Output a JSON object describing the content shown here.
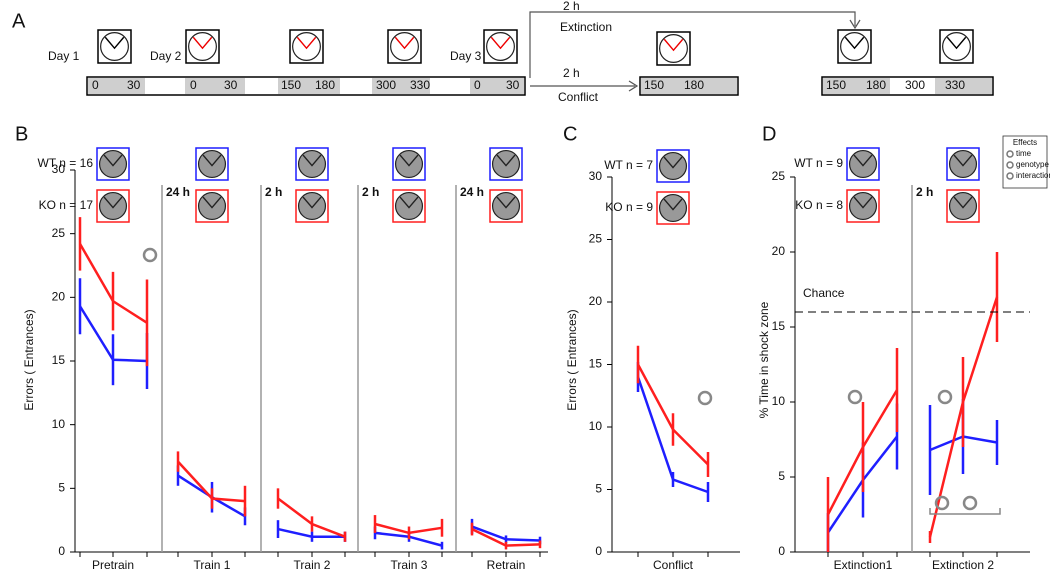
{
  "panel_a": {
    "label": "A",
    "days": [
      "Day 1",
      "Day 2",
      "Day 3"
    ],
    "timeline_1": [
      0,
      30,
      0,
      30,
      150,
      180,
      300,
      330,
      0,
      30
    ],
    "timeline_2": [
      150,
      180
    ],
    "timeline_3": [
      150,
      180,
      300,
      330
    ],
    "extinction": {
      "time": "2 h",
      "label": "Extinction"
    },
    "conflict": {
      "time": "2 h",
      "label": "Conflict"
    }
  },
  "chart_data": [
    {
      "type": "line",
      "panel": "B",
      "ylabel": "Errors ( Entrances)",
      "ylim": [
        0,
        30
      ],
      "yticks": [
        0,
        5,
        10,
        15,
        20,
        25,
        30
      ],
      "groups": [
        "Pretrain",
        "Train 1",
        "Train 2",
        "Train 3",
        "Retrain"
      ],
      "separators": [
        "24 h",
        "2 h",
        "2 h",
        "24 h"
      ],
      "series": [
        {
          "name": "WT n = 16",
          "color": "#1f1fff",
          "values": [
            [
              19.3,
              15.1,
              15.0
            ],
            [
              6.0,
              4.3,
              2.8
            ],
            [
              1.8,
              1.2,
              1.2
            ],
            [
              1.5,
              1.2,
              0.5
            ],
            [
              2.0,
              1.0,
              0.9
            ]
          ],
          "errors": [
            [
              2.2,
              2.0,
              2.2
            ],
            [
              0.8,
              1.2,
              0.7
            ],
            [
              0.7,
              0.4,
              0.4
            ],
            [
              0.5,
              0.4,
              0.3
            ],
            [
              0.6,
              0.3,
              0.3
            ]
          ]
        },
        {
          "name": "KO n = 17",
          "color": "#ff1f1f",
          "values": [
            [
              24.2,
              19.7,
              18.0
            ],
            [
              7.1,
              4.2,
              4.0
            ],
            [
              4.2,
              2.2,
              1.2
            ],
            [
              2.2,
              1.5,
              1.9
            ],
            [
              1.8,
              0.5,
              0.6
            ]
          ],
          "errors": [
            [
              2.1,
              2.3,
              3.4
            ],
            [
              0.8,
              0.8,
              1.2
            ],
            [
              0.8,
              0.6,
              0.4
            ],
            [
              0.7,
              0.5,
              0.7
            ],
            [
              0.5,
              0.3,
              0.3
            ]
          ]
        }
      ]
    },
    {
      "type": "line",
      "panel": "C",
      "ylabel": "Errors ( Entrances)",
      "ylim": [
        0,
        30
      ],
      "yticks": [
        0,
        5,
        10,
        15,
        20,
        25,
        30
      ],
      "groups": [
        "Conflict"
      ],
      "separators": [],
      "series": [
        {
          "name": "WT n = 7",
          "color": "#1f1fff",
          "values": [
            [
              14.0,
              5.8,
              4.8
            ]
          ],
          "errors": [
            [
              1.2,
              0.6,
              0.8
            ]
          ]
        },
        {
          "name": "KO n = 9",
          "color": "#ff1f1f",
          "values": [
            [
              15.0,
              9.8,
              7.0
            ]
          ],
          "errors": [
            [
              1.5,
              1.3,
              1.0
            ]
          ]
        }
      ]
    },
    {
      "type": "line",
      "panel": "D",
      "ylabel": "% Time in shock zone",
      "ylim": [
        0,
        25
      ],
      "yticks": [
        0,
        5,
        10,
        15,
        20,
        25
      ],
      "groups": [
        "Extinction1",
        "Extinction 2"
      ],
      "separators": [
        "2 h"
      ],
      "reference": {
        "label": "Chance",
        "value": 16
      },
      "effects_legend": {
        "title": "Effects",
        "items": [
          "time",
          "genotype",
          "interaction"
        ]
      },
      "series": [
        {
          "name": "WT n = 9",
          "color": "#1f1fff",
          "values": [
            [
              1.3,
              4.8,
              7.7
            ],
            [
              6.8,
              7.7,
              7.3
            ]
          ],
          "errors": [
            [
              1.3,
              2.5,
              2.2
            ],
            [
              3.0,
              2.5,
              1.5
            ]
          ]
        },
        {
          "name": "KO n = 8",
          "color": "#ff1f1f",
          "values": [
            [
              2.5,
              7.0,
              10.8
            ],
            [
              1.0,
              10.0,
              17.0
            ]
          ],
          "errors": [
            [
              2.5,
              3.0,
              2.8
            ],
            [
              0.4,
              3.0,
              3.0
            ]
          ]
        }
      ]
    }
  ]
}
